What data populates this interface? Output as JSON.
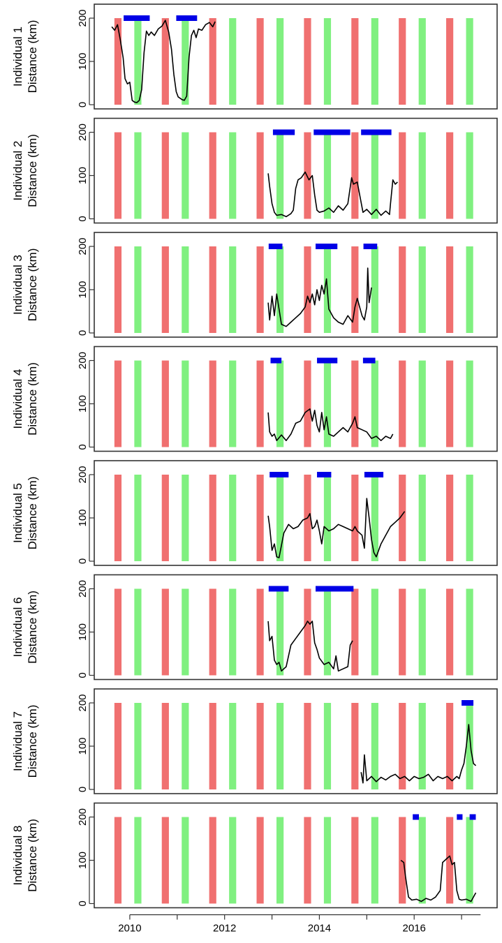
{
  "chart_data": {
    "type": "line",
    "x_axis": {
      "range": [
        2009.25,
        2017.75
      ],
      "ticks": [
        2010,
        2012,
        2014,
        2016
      ],
      "tick_labels": [
        "2010",
        "2012",
        "2014",
        "2016"
      ]
    },
    "y_axis": {
      "range": [
        0,
        210
      ],
      "ticks": [
        0,
        100,
        200
      ],
      "tick_labels": [
        "0",
        "100",
        "200"
      ]
    },
    "grid": false,
    "colors": {
      "red_band": "#f07070",
      "green_band": "#80f080",
      "period_bar": "#0000e6",
      "line": "#000000"
    },
    "red_bands": [
      2009.75,
      2010.75,
      2011.75,
      2012.75,
      2013.75,
      2014.75,
      2015.75,
      2016.75
    ],
    "green_bands": [
      2010.17,
      2011.17,
      2012.17,
      2013.17,
      2014.17,
      2015.17,
      2016.17,
      2017.17
    ],
    "band_width_years": 0.15,
    "panels": [
      {
        "ylabel_line1": "Individual 1",
        "ylabel_line2": "Distance (km)",
        "periods": [
          [
            2009.87,
            2010.42
          ],
          [
            2010.98,
            2011.42
          ]
        ],
        "x": [
          2009.62,
          2009.68,
          2009.74,
          2009.8,
          2009.86,
          2009.9,
          2009.95,
          2010.0,
          2010.05,
          2010.1,
          2010.15,
          2010.2,
          2010.25,
          2010.3,
          2010.35,
          2010.4,
          2010.45,
          2010.52,
          2010.6,
          2010.68,
          2010.75,
          2010.82,
          2010.88,
          2010.93,
          2010.98,
          2011.02,
          2011.06,
          2011.1,
          2011.15,
          2011.2,
          2011.25,
          2011.3,
          2011.35,
          2011.4,
          2011.45,
          2011.52,
          2011.6,
          2011.68,
          2011.75,
          2011.8
        ],
        "y": [
          180,
          172,
          185,
          150,
          108,
          60,
          48,
          52,
          10,
          6,
          5,
          10,
          35,
          120,
          170,
          160,
          168,
          160,
          175,
          182,
          195,
          168,
          128,
          70,
          30,
          18,
          15,
          12,
          10,
          20,
          110,
          160,
          172,
          155,
          175,
          172,
          185,
          190,
          180,
          192
        ]
      },
      {
        "ylabel_line1": "Individual 2",
        "ylabel_line2": "Distance (km)",
        "periods": [
          [
            2013.02,
            2013.48
          ],
          [
            2013.88,
            2014.65
          ],
          [
            2014.88,
            2015.52
          ]
        ],
        "x": [
          2012.92,
          2012.95,
          2013.0,
          2013.05,
          2013.1,
          2013.2,
          2013.3,
          2013.4,
          2013.45,
          2013.5,
          2013.55,
          2013.62,
          2013.7,
          2013.78,
          2013.85,
          2013.9,
          2013.95,
          2014.0,
          2014.1,
          2014.2,
          2014.3,
          2014.4,
          2014.5,
          2014.6,
          2014.68,
          2014.72,
          2014.8,
          2014.86,
          2014.92,
          2015.0,
          2015.1,
          2015.2,
          2015.3,
          2015.4,
          2015.48,
          2015.5,
          2015.55,
          2015.6,
          2015.65
        ],
        "y": [
          105,
          75,
          35,
          15,
          8,
          10,
          5,
          12,
          20,
          70,
          90,
          95,
          108,
          90,
          100,
          55,
          20,
          15,
          18,
          25,
          15,
          30,
          20,
          35,
          95,
          80,
          85,
          50,
          15,
          22,
          10,
          22,
          8,
          18,
          10,
          35,
          90,
          80,
          85
        ]
      },
      {
        "ylabel_line1": "Individual 3",
        "ylabel_line2": "Distance (km)",
        "periods": [
          [
            2012.93,
            2013.22
          ],
          [
            2013.92,
            2014.38
          ],
          [
            2014.93,
            2015.22
          ]
        ],
        "x": [
          2012.92,
          2012.95,
          2013.0,
          2013.05,
          2013.1,
          2013.15,
          2013.2,
          2013.3,
          2013.4,
          2013.5,
          2013.6,
          2013.7,
          2013.75,
          2013.8,
          2013.85,
          2013.9,
          2013.95,
          2014.0,
          2014.05,
          2014.1,
          2014.15,
          2014.2,
          2014.3,
          2014.4,
          2014.5,
          2014.6,
          2014.7,
          2014.75,
          2014.8,
          2014.9,
          2014.95,
          2015.0,
          2015.02,
          2015.05,
          2015.1
        ],
        "y": [
          70,
          30,
          85,
          40,
          90,
          55,
          20,
          15,
          25,
          35,
          45,
          60,
          85,
          70,
          90,
          65,
          100,
          75,
          110,
          90,
          125,
          55,
          35,
          25,
          20,
          40,
          25,
          60,
          80,
          40,
          30,
          60,
          150,
          70,
          105
        ]
      },
      {
        "ylabel_line1": "Individual 4",
        "ylabel_line2": "Distance (km)",
        "periods": [
          [
            2012.97,
            2013.2
          ],
          [
            2013.95,
            2014.38
          ],
          [
            2014.92,
            2015.18
          ]
        ],
        "x": [
          2012.92,
          2012.95,
          2013.0,
          2013.05,
          2013.1,
          2013.2,
          2013.3,
          2013.4,
          2013.5,
          2013.6,
          2013.7,
          2013.8,
          2013.85,
          2013.9,
          2013.95,
          2014.0,
          2014.05,
          2014.1,
          2014.15,
          2014.2,
          2014.3,
          2014.4,
          2014.5,
          2014.6,
          2014.7,
          2014.75,
          2014.8,
          2014.9,
          2015.0,
          2015.1,
          2015.2,
          2015.3,
          2015.4,
          2015.5,
          2015.55
        ],
        "y": [
          80,
          35,
          25,
          30,
          15,
          28,
          15,
          30,
          55,
          60,
          80,
          88,
          60,
          85,
          50,
          35,
          80,
          40,
          70,
          30,
          25,
          35,
          45,
          35,
          55,
          70,
          45,
          40,
          35,
          20,
          25,
          15,
          25,
          20,
          30
        ]
      },
      {
        "ylabel_line1": "Individual 5",
        "ylabel_line2": "Distance (km)",
        "periods": [
          [
            2012.95,
            2013.35
          ],
          [
            2013.95,
            2014.25
          ],
          [
            2014.95,
            2015.35
          ]
        ],
        "x": [
          2012.92,
          2012.95,
          2013.0,
          2013.05,
          2013.1,
          2013.15,
          2013.25,
          2013.35,
          2013.45,
          2013.55,
          2013.65,
          2013.75,
          2013.8,
          2013.85,
          2013.9,
          2013.95,
          2014.0,
          2014.05,
          2014.1,
          2014.2,
          2014.3,
          2014.4,
          2014.5,
          2014.6,
          2014.7,
          2014.75,
          2014.8,
          2014.9,
          2014.95,
          2015.0,
          2015.05,
          2015.1,
          2015.15,
          2015.2,
          2015.3,
          2015.4,
          2015.5,
          2015.6,
          2015.7,
          2015.8
        ],
        "y": [
          105,
          80,
          25,
          40,
          10,
          8,
          65,
          85,
          75,
          80,
          95,
          100,
          110,
          75,
          80,
          95,
          70,
          40,
          80,
          70,
          75,
          85,
          80,
          75,
          70,
          80,
          70,
          60,
          30,
          145,
          100,
          50,
          20,
          10,
          40,
          60,
          80,
          90,
          100,
          115
        ]
      },
      {
        "ylabel_line1": "Individual 6",
        "ylabel_line2": "Distance (km)",
        "periods": [
          [
            2012.93,
            2013.35
          ],
          [
            2013.92,
            2014.72
          ]
        ],
        "x": [
          2012.92,
          2012.95,
          2013.0,
          2013.05,
          2013.1,
          2013.15,
          2013.2,
          2013.3,
          2013.4,
          2013.5,
          2013.6,
          2013.7,
          2013.75,
          2013.8,
          2013.85,
          2013.9,
          2013.95,
          2014.0,
          2014.1,
          2014.2,
          2014.3,
          2014.35,
          2014.4,
          2014.5,
          2014.6,
          2014.65,
          2014.7
        ],
        "y": [
          125,
          80,
          90,
          35,
          25,
          30,
          10,
          20,
          70,
          85,
          100,
          115,
          125,
          118,
          125,
          75,
          60,
          40,
          25,
          30,
          15,
          45,
          10,
          15,
          20,
          70,
          80
        ]
      },
      {
        "ylabel_line1": "Individual 7",
        "ylabel_line2": "Distance (km)",
        "periods": [
          [
            2017.0,
            2017.25
          ]
        ],
        "x": [
          2014.88,
          2014.92,
          2014.95,
          2015.0,
          2015.1,
          2015.2,
          2015.3,
          2015.4,
          2015.5,
          2015.6,
          2015.7,
          2015.8,
          2015.9,
          2016.0,
          2016.1,
          2016.2,
          2016.3,
          2016.4,
          2016.5,
          2016.6,
          2016.7,
          2016.8,
          2016.9,
          2016.95,
          2017.0,
          2017.05,
          2017.1,
          2017.15,
          2017.2,
          2017.25,
          2017.3
        ],
        "y": [
          40,
          15,
          80,
          20,
          30,
          18,
          28,
          22,
          30,
          35,
          25,
          30,
          20,
          30,
          25,
          28,
          35,
          20,
          30,
          25,
          30,
          20,
          30,
          25,
          45,
          60,
          100,
          150,
          90,
          60,
          55
        ]
      },
      {
        "ylabel_line1": "Individual 8",
        "ylabel_line2": "Distance (km)",
        "periods": [
          [
            2015.97,
            2016.1
          ],
          [
            2016.9,
            2017.02
          ],
          [
            2017.17,
            2017.3
          ]
        ],
        "x": [
          2015.72,
          2015.78,
          2015.82,
          2015.88,
          2015.95,
          2016.05,
          2016.15,
          2016.25,
          2016.35,
          2016.45,
          2016.55,
          2016.6,
          2016.65,
          2016.7,
          2016.75,
          2016.8,
          2016.85,
          2016.9,
          2016.95,
          2017.0,
          2017.1,
          2017.2,
          2017.3
        ],
        "y": [
          100,
          95,
          60,
          15,
          8,
          10,
          5,
          12,
          8,
          15,
          30,
          95,
          100,
          105,
          110,
          90,
          95,
          30,
          10,
          8,
          10,
          5,
          25
        ]
      }
    ]
  }
}
